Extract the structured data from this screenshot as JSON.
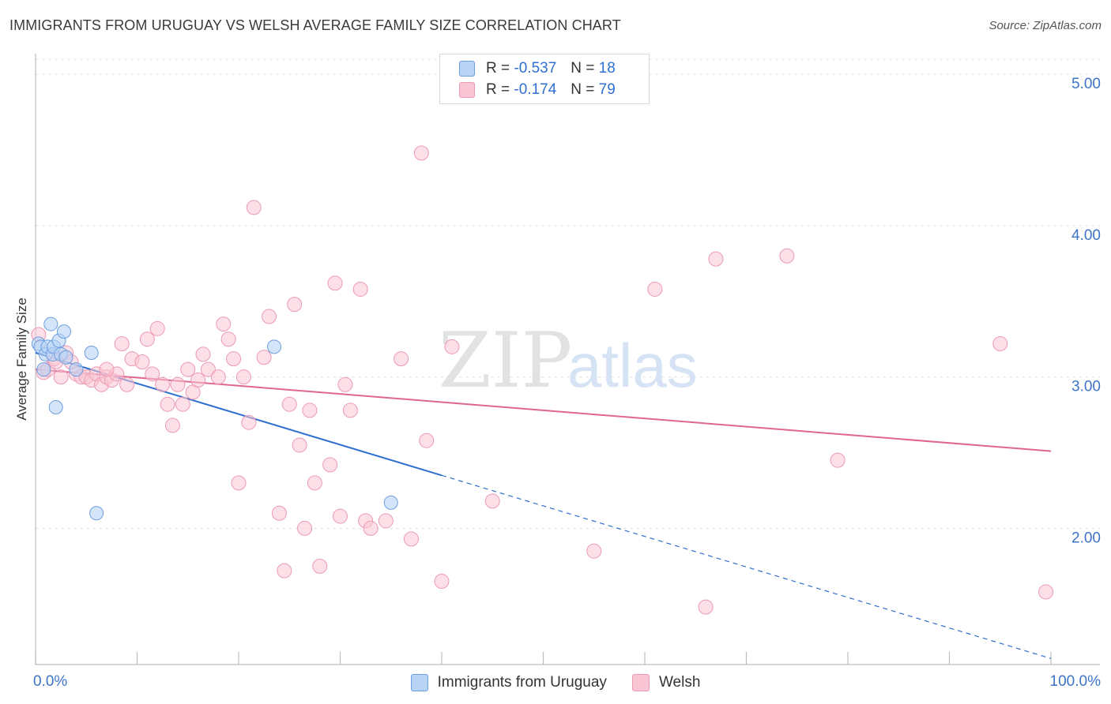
{
  "title": "IMMIGRANTS FROM URUGUAY VS WELSH AVERAGE FAMILY SIZE CORRELATION CHART",
  "source": "Source: ZipAtlas.com",
  "watermark": {
    "zip": "ZIP",
    "atlas": "atlas"
  },
  "legend": {
    "uruguay": {
      "r_label": "R =",
      "r_value": "-0.537",
      "n_label": "N =",
      "n_value": "18"
    },
    "welsh": {
      "r_label": "R =",
      "r_value": "-0.174",
      "n_label": "N =",
      "n_value": "79"
    }
  },
  "colors": {
    "uruguay_fill": "#b9d3f5",
    "uruguay_stroke": "#6d9ee0",
    "uruguay_line": "#2f6fd0",
    "welsh_fill": "#f9c4d4",
    "welsh_stroke": "#ec9ab4",
    "welsh_line": "#e0658f",
    "tick_label": "#3d74c9",
    "grid": "#e3e3e3"
  },
  "chart_data": {
    "type": "scatter",
    "title": "IMMIGRANTS FROM URUGUAY VS WELSH AVERAGE FAMILY SIZE CORRELATION CHART",
    "xlabel": "",
    "ylabel": "Average Family Size",
    "x_tick_labels": [
      "0.0%",
      "100.0%"
    ],
    "y_tick_labels": [
      "2.00",
      "3.00",
      "4.00",
      "5.00"
    ],
    "xlim": [
      0,
      100
    ],
    "ylim": [
      1.1,
      5.1
    ],
    "grid": true,
    "legend_position": "top-center",
    "series": [
      {
        "name": "Immigrants from Uruguay",
        "points": [
          [
            0.3,
            3.22
          ],
          [
            0.5,
            3.2
          ],
          [
            0.8,
            3.05
          ],
          [
            1.0,
            3.15
          ],
          [
            1.2,
            3.2
          ],
          [
            1.5,
            3.35
          ],
          [
            1.7,
            3.15
          ],
          [
            1.8,
            3.2
          ],
          [
            2.0,
            2.8
          ],
          [
            2.3,
            3.24
          ],
          [
            2.5,
            3.15
          ],
          [
            2.8,
            3.3
          ],
          [
            3.0,
            3.13
          ],
          [
            5.5,
            3.16
          ],
          [
            6.0,
            2.1
          ],
          [
            23.5,
            3.2
          ],
          [
            35.0,
            2.17
          ],
          [
            4.0,
            3.05
          ]
        ],
        "trend": {
          "x0": 0,
          "y0": 3.16,
          "x1": 40,
          "y1": 2.35,
          "dash_to_x": 100,
          "dash_to_y": 1.14
        }
      },
      {
        "name": "Welsh",
        "points": [
          [
            0.3,
            3.28
          ],
          [
            0.8,
            3.03
          ],
          [
            1.2,
            3.05
          ],
          [
            1.8,
            3.12
          ],
          [
            2.5,
            3.0
          ],
          [
            3.0,
            3.16
          ],
          [
            3.5,
            3.1
          ],
          [
            4.0,
            3.02
          ],
          [
            4.5,
            3.0
          ],
          [
            5.0,
            3.0
          ],
          [
            5.5,
            2.98
          ],
          [
            6.0,
            3.02
          ],
          [
            6.5,
            2.95
          ],
          [
            7.0,
            3.0
          ],
          [
            7.5,
            2.98
          ],
          [
            8.0,
            3.02
          ],
          [
            8.5,
            3.22
          ],
          [
            9.0,
            2.95
          ],
          [
            9.5,
            3.12
          ],
          [
            10.5,
            3.1
          ],
          [
            11.0,
            3.25
          ],
          [
            11.5,
            3.02
          ],
          [
            12.0,
            3.32
          ],
          [
            12.5,
            2.95
          ],
          [
            13.0,
            2.82
          ],
          [
            13.5,
            2.68
          ],
          [
            14.0,
            2.95
          ],
          [
            14.5,
            2.82
          ],
          [
            15.0,
            3.05
          ],
          [
            15.5,
            2.9
          ],
          [
            16.0,
            2.98
          ],
          [
            16.5,
            3.15
          ],
          [
            17.0,
            3.05
          ],
          [
            18.0,
            3.0
          ],
          [
            18.5,
            3.35
          ],
          [
            19.0,
            3.25
          ],
          [
            19.5,
            3.12
          ],
          [
            20.0,
            2.3
          ],
          [
            20.5,
            3.0
          ],
          [
            21.0,
            2.7
          ],
          [
            21.5,
            4.12
          ],
          [
            22.5,
            3.13
          ],
          [
            23.0,
            3.4
          ],
          [
            24.0,
            2.1
          ],
          [
            24.5,
            1.72
          ],
          [
            25.0,
            2.82
          ],
          [
            25.5,
            3.48
          ],
          [
            26.0,
            2.55
          ],
          [
            26.5,
            2.0
          ],
          [
            27.0,
            2.78
          ],
          [
            27.5,
            2.3
          ],
          [
            28.0,
            1.75
          ],
          [
            29.0,
            2.42
          ],
          [
            29.5,
            3.62
          ],
          [
            30.0,
            2.08
          ],
          [
            30.5,
            2.95
          ],
          [
            31.0,
            2.78
          ],
          [
            32.0,
            3.58
          ],
          [
            32.5,
            2.05
          ],
          [
            33.0,
            2.0
          ],
          [
            34.5,
            2.05
          ],
          [
            36.0,
            3.12
          ],
          [
            37.0,
            1.93
          ],
          [
            38.0,
            4.48
          ],
          [
            38.5,
            2.58
          ],
          [
            40.0,
            1.65
          ],
          [
            41.0,
            3.2
          ],
          [
            45.0,
            2.18
          ],
          [
            47.0,
            4.98
          ],
          [
            55.0,
            1.85
          ],
          [
            61.0,
            3.58
          ],
          [
            66.0,
            1.48
          ],
          [
            67.0,
            3.78
          ],
          [
            74.0,
            3.8
          ],
          [
            79.0,
            2.45
          ],
          [
            95.0,
            3.22
          ],
          [
            99.5,
            1.58
          ],
          [
            7.0,
            3.05
          ],
          [
            2.0,
            3.1
          ]
        ],
        "trend": {
          "x0": 0,
          "y0": 3.05,
          "x1": 100,
          "y1": 2.51
        }
      }
    ]
  },
  "bottom_legend": {
    "uruguay_label": "Immigrants from Uruguay",
    "welsh_label": "Welsh"
  }
}
